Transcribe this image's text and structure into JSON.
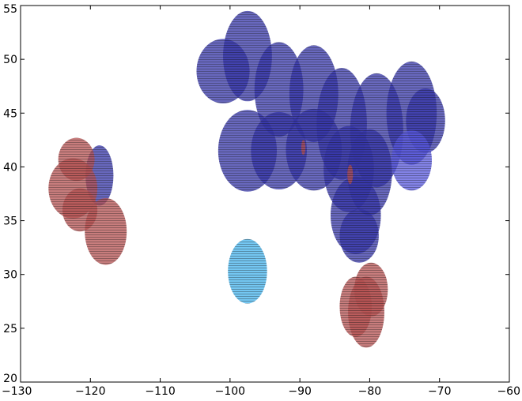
{
  "chart_data": {
    "type": "scatter",
    "title": "",
    "xlabel": "",
    "ylabel": "",
    "xlim": [
      -130,
      -60
    ],
    "ylim": [
      20,
      55
    ],
    "grid": false,
    "xticks": [
      -130,
      -120,
      -110,
      -100,
      -90,
      -80,
      -70,
      -60
    ],
    "yticks": [
      20,
      25,
      30,
      35,
      40,
      45,
      50,
      55
    ],
    "xtick_labels": [
      "−130",
      "−120",
      "−110",
      "−100",
      "−90",
      "−80",
      "−70",
      "−60"
    ],
    "ytick_labels": [
      "20",
      "25",
      "30",
      "35",
      "40",
      "45",
      "50",
      "55"
    ],
    "colors": {
      "blue": "#3535a8",
      "red": "#b55252",
      "cyan": "#46b4ee",
      "light_blue": "#5a5ae0",
      "stripe": "#1a1a1a"
    },
    "series": [
      {
        "color_key": "blue",
        "points": [
          {
            "x": -118.7,
            "y": 39.2,
            "rx": 2.0,
            "ry": 2.8
          },
          {
            "x": -97.5,
            "y": 50.3,
            "rx": 3.5,
            "ry": 4.2
          },
          {
            "x": -101.0,
            "y": 48.9,
            "rx": 3.8,
            "ry": 3.0
          },
          {
            "x": -93.0,
            "y": 47.2,
            "rx": 3.5,
            "ry": 4.4
          },
          {
            "x": -88.0,
            "y": 46.8,
            "rx": 3.5,
            "ry": 4.5
          },
          {
            "x": -84.0,
            "y": 44.0,
            "rx": 3.6,
            "ry": 5.2
          },
          {
            "x": -79.0,
            "y": 43.4,
            "rx": 3.8,
            "ry": 5.3
          },
          {
            "x": -74.0,
            "y": 45.0,
            "rx": 3.6,
            "ry": 4.8
          },
          {
            "x": -72.0,
            "y": 44.3,
            "rx": 2.8,
            "ry": 3.0
          },
          {
            "x": -97.5,
            "y": 41.5,
            "rx": 4.2,
            "ry": 3.8
          },
          {
            "x": -93.0,
            "y": 41.5,
            "rx": 4.0,
            "ry": 3.6
          },
          {
            "x": -88.0,
            "y": 41.6,
            "rx": 4.0,
            "ry": 3.8
          },
          {
            "x": -83.0,
            "y": 39.8,
            "rx": 3.6,
            "ry": 4.0
          },
          {
            "x": -80.0,
            "y": 39.5,
            "rx": 3.2,
            "ry": 4.0
          },
          {
            "x": -82.0,
            "y": 35.5,
            "rx": 3.6,
            "ry": 3.6
          },
          {
            "x": -81.5,
            "y": 33.6,
            "rx": 2.8,
            "ry": 2.5
          }
        ]
      },
      {
        "color_key": "light_blue",
        "points": [
          {
            "x": -74.0,
            "y": 40.6,
            "rx": 2.9,
            "ry": 2.8
          }
        ]
      },
      {
        "color_key": "red",
        "points": [
          {
            "x": -122.0,
            "y": 40.7,
            "rx": 2.6,
            "ry": 2.0
          },
          {
            "x": -122.5,
            "y": 38.0,
            "rx": 3.5,
            "ry": 2.8
          },
          {
            "x": -121.5,
            "y": 36.0,
            "rx": 2.5,
            "ry": 2.0
          },
          {
            "x": -117.8,
            "y": 34.0,
            "rx": 3.0,
            "ry": 3.1
          },
          {
            "x": -79.8,
            "y": 28.6,
            "rx": 2.4,
            "ry": 2.5
          },
          {
            "x": -82.0,
            "y": 27.0,
            "rx": 2.3,
            "ry": 2.8
          },
          {
            "x": -80.5,
            "y": 26.5,
            "rx": 2.6,
            "ry": 3.3
          },
          {
            "x": -89.5,
            "y": 41.8,
            "rx": 0.3,
            "ry": 0.7
          },
          {
            "x": -82.8,
            "y": 39.3,
            "rx": 0.4,
            "ry": 0.9
          }
        ]
      },
      {
        "color_key": "cyan",
        "points": [
          {
            "x": -97.5,
            "y": 30.3,
            "rx": 2.8,
            "ry": 3.0
          }
        ]
      }
    ]
  }
}
